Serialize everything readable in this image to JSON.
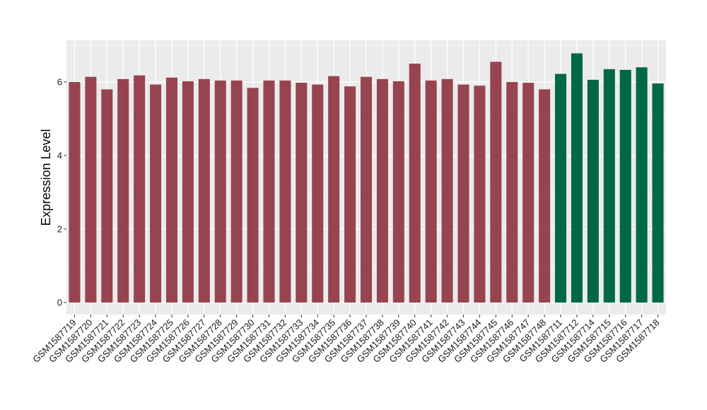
{
  "chart_data": {
    "type": "bar",
    "title": "",
    "xlabel": "",
    "ylabel": "Expression Level",
    "ylim": [
      0,
      7.2
    ],
    "yticks": [
      0,
      2,
      4,
      6
    ],
    "grid": true,
    "legend": "none",
    "colors": {
      "panel_background": "#ebebeb",
      "grid_major": "#ffffff",
      "group_a": "#984450",
      "group_b": "#006844"
    },
    "categories": [
      "GSM1587719",
      "GSM1587720",
      "GSM1587721",
      "GSM1587722",
      "GSM1587723",
      "GSM1587724",
      "GSM1587725",
      "GSM1587726",
      "GSM1587727",
      "GSM1587728",
      "GSM1587729",
      "GSM1587730",
      "GSM1587731",
      "GSM1587732",
      "GSM1587733",
      "GSM1587734",
      "GSM1587735",
      "GSM1587736",
      "GSM1587737",
      "GSM1587738",
      "GSM1587739",
      "GSM1587740",
      "GSM1587741",
      "GSM1587742",
      "GSM1587743",
      "GSM1587744",
      "GSM1587745",
      "GSM1587746",
      "GSM1587747",
      "GSM1587748",
      "GSM1587711",
      "GSM1587712",
      "GSM1587714",
      "GSM1587715",
      "GSM1587716",
      "GSM1587717",
      "GSM1587718"
    ],
    "values": [
      6.0,
      6.14,
      5.8,
      6.08,
      6.18,
      5.93,
      6.12,
      6.02,
      6.08,
      6.04,
      6.04,
      5.84,
      6.04,
      6.04,
      5.98,
      5.93,
      6.16,
      5.88,
      6.14,
      6.08,
      6.02,
      6.5,
      6.04,
      6.08,
      5.93,
      5.9,
      6.55,
      6.0,
      5.98,
      5.8,
      6.22,
      6.78,
      6.06,
      6.35,
      6.33,
      6.4,
      5.96
    ],
    "groups": [
      "a",
      "a",
      "a",
      "a",
      "a",
      "a",
      "a",
      "a",
      "a",
      "a",
      "a",
      "a",
      "a",
      "a",
      "a",
      "a",
      "a",
      "a",
      "a",
      "a",
      "a",
      "a",
      "a",
      "a",
      "a",
      "a",
      "a",
      "a",
      "a",
      "a",
      "b",
      "b",
      "b",
      "b",
      "b",
      "b",
      "b"
    ]
  }
}
